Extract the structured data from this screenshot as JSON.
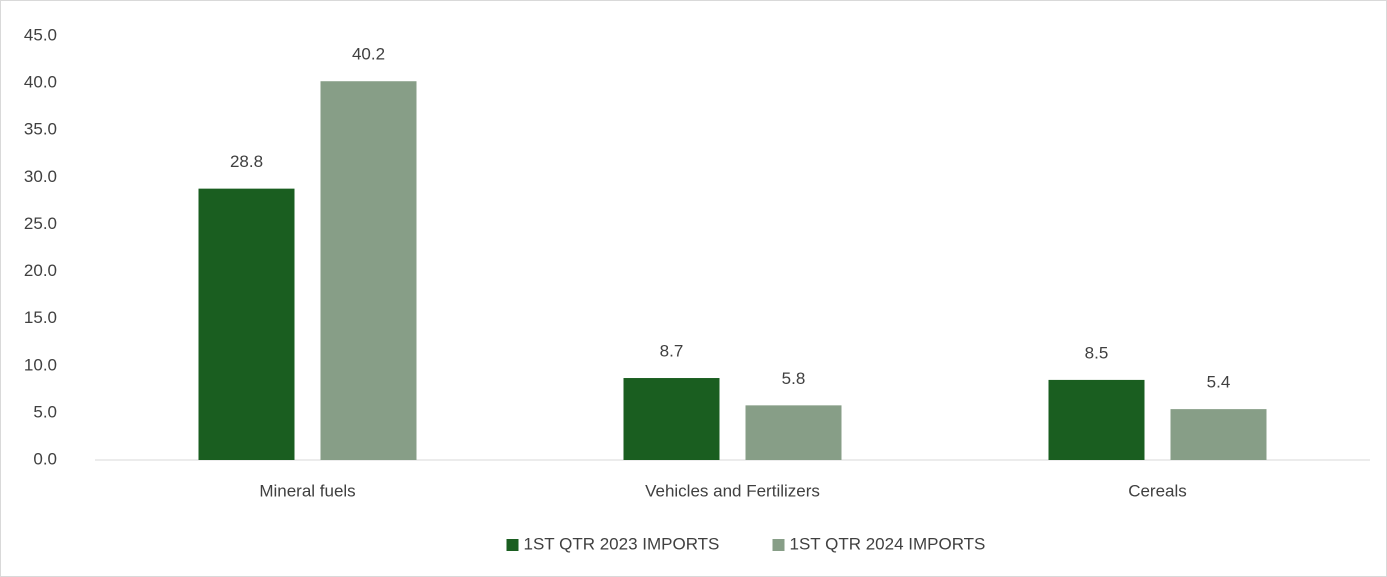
{
  "chart_data": {
    "type": "bar",
    "categories": [
      "Mineral fuels",
      "Vehicles and Fertilizers",
      "Cereals"
    ],
    "series": [
      {
        "name": "1ST QTR 2023 IMPORTS",
        "color": "#1a5e20",
        "values": [
          28.8,
          8.7,
          8.5
        ]
      },
      {
        "name": "1ST QTR 2024 IMPORTS",
        "color": "#879e87",
        "values": [
          40.2,
          5.8,
          5.4
        ]
      }
    ],
    "ylim": [
      0,
      45
    ],
    "yticks": [
      {
        "value": 0,
        "label": "0.0"
      },
      {
        "value": 5,
        "label": "5.0"
      },
      {
        "value": 10,
        "label": "10.0"
      },
      {
        "value": 15,
        "label": "15.0"
      },
      {
        "value": 20,
        "label": "20.0"
      },
      {
        "value": 25,
        "label": "25.0"
      },
      {
        "value": 30,
        "label": "30.0"
      },
      {
        "value": 35,
        "label": "35.0"
      },
      {
        "value": 40,
        "label": "40.0"
      },
      {
        "value": 45,
        "label": "45.0"
      }
    ],
    "grid": false,
    "legend": "bottom"
  }
}
